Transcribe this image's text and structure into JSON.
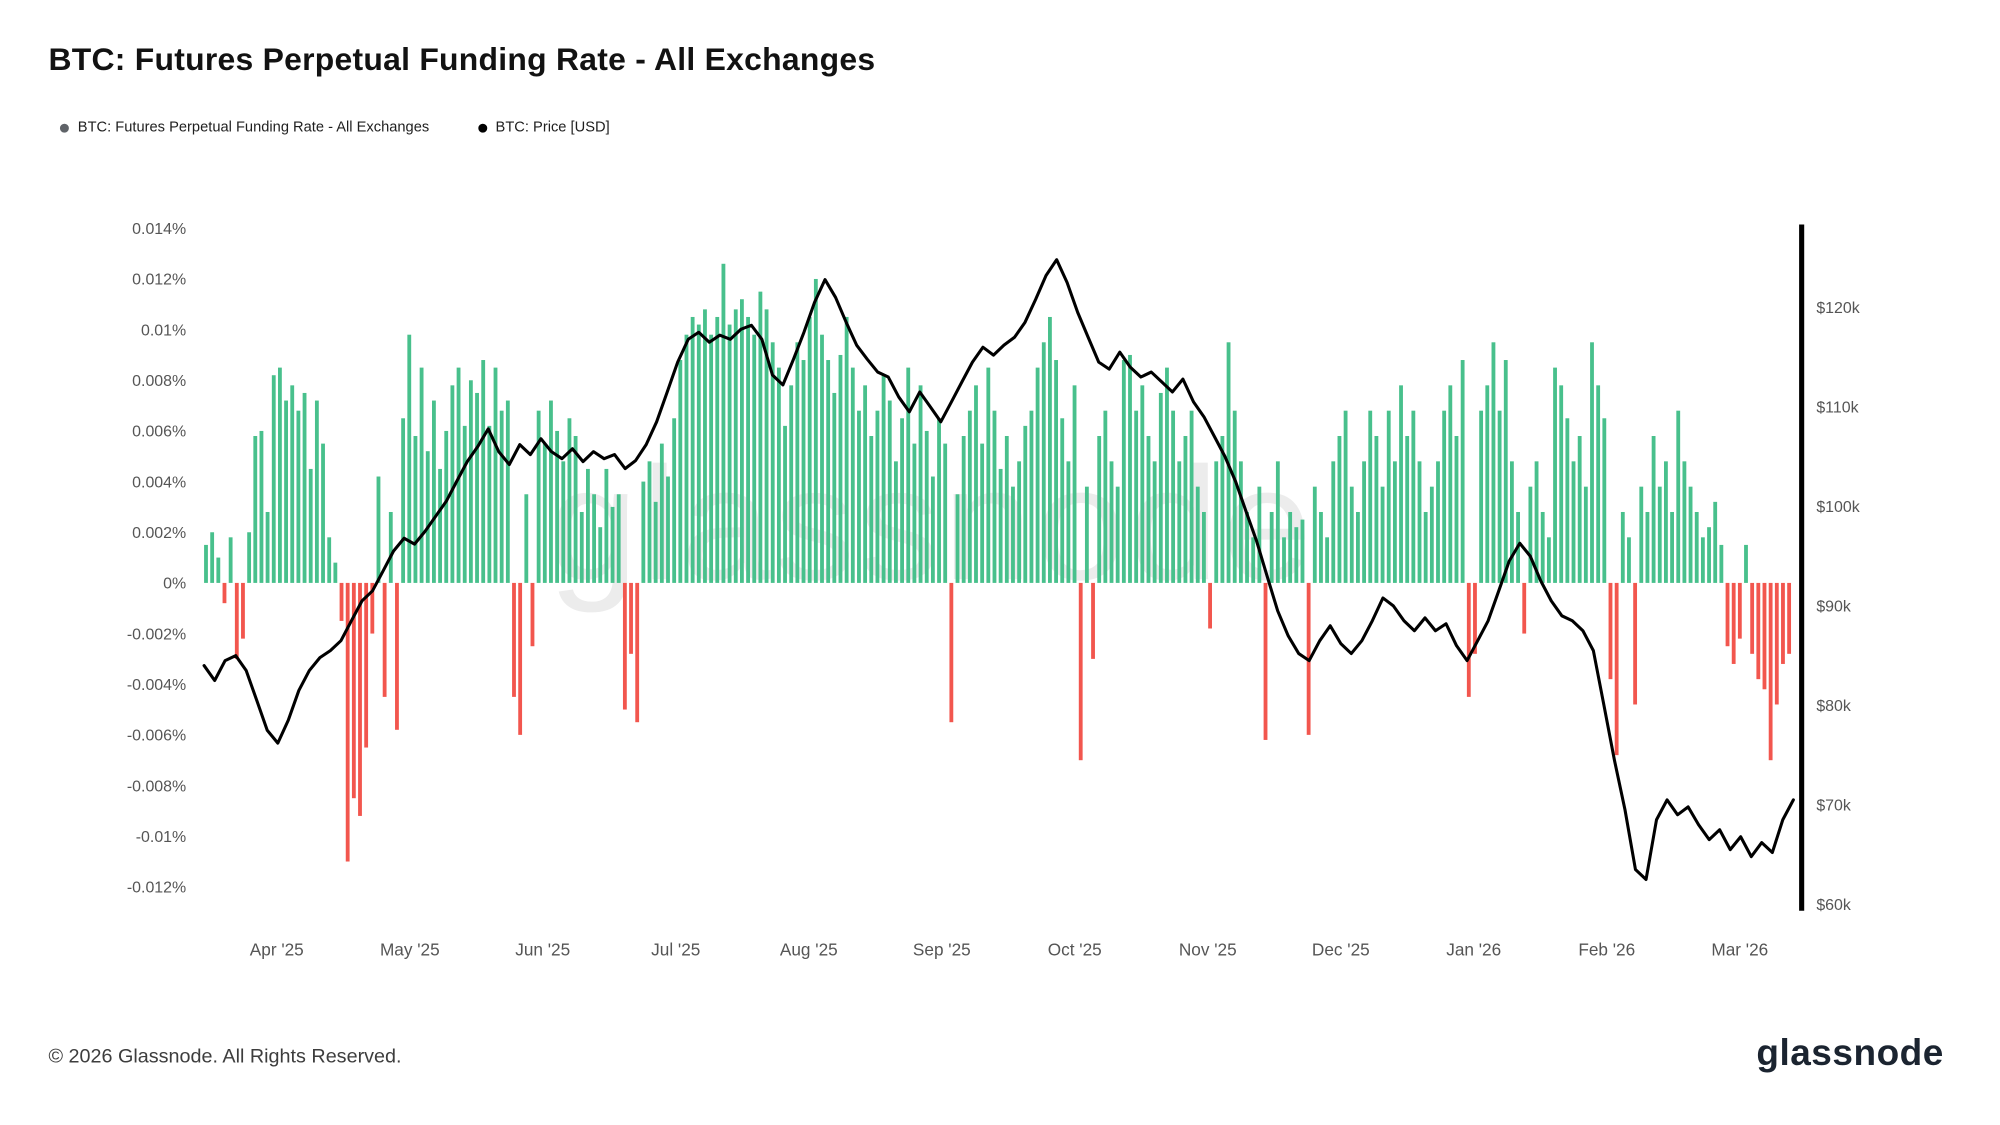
{
  "header": {
    "title": "BTC: Futures Perpetual Funding Rate - All Exchanges",
    "legend": [
      {
        "label": "BTC: Futures Perpetual Funding Rate - All Exchanges",
        "dot_color": "#5f6368"
      },
      {
        "label": "BTC: Price [USD]",
        "dot_color": "#000000"
      }
    ]
  },
  "watermark": "glassnode",
  "footer": {
    "copyright": "© 2026 Glassnode. All Rights Reserved.",
    "brand": "glassnode"
  },
  "chart_data": {
    "type": "bar",
    "subtype": "bar+line combo, dual y-axis",
    "title": "BTC: Futures Perpetual Funding Rate - All Exchanges",
    "grid": false,
    "legend_position": "top-left",
    "x_axis": {
      "labels": [
        "Apr '25",
        "May '25",
        "Jun '25",
        "Jul '25",
        "Aug '25",
        "Sep '25",
        "Oct '25",
        "Nov '25",
        "Dec '25",
        "Jan '26",
        "Feb '26",
        "Mar '26"
      ]
    },
    "left_axis": {
      "unit": "%",
      "min": -0.013,
      "max": 0.0145,
      "ticks": [
        {
          "label": "0.014%",
          "value": 0.014
        },
        {
          "label": "0.012%",
          "value": 0.012
        },
        {
          "label": "0.01%",
          "value": 0.01
        },
        {
          "label": "0.008%",
          "value": 0.008
        },
        {
          "label": "0.006%",
          "value": 0.006
        },
        {
          "label": "0.004%",
          "value": 0.004
        },
        {
          "label": "0.002%",
          "value": 0.002
        },
        {
          "label": "0%",
          "value": 0
        },
        {
          "label": "-0.002%",
          "value": -0.002
        },
        {
          "label": "-0.004%",
          "value": -0.004
        },
        {
          "label": "-0.006%",
          "value": -0.006
        },
        {
          "label": "-0.008%",
          "value": -0.008
        },
        {
          "label": "-0.01%",
          "value": -0.01
        },
        {
          "label": "-0.012%",
          "value": -0.012
        }
      ]
    },
    "right_axis": {
      "unit": "USD",
      "ticks": [
        {
          "label": "$120k",
          "value": 120
        },
        {
          "label": "$110k",
          "value": 110
        },
        {
          "label": "$100k",
          "value": 100
        },
        {
          "label": "$90k",
          "value": 90
        },
        {
          "label": "$80k",
          "value": 80
        },
        {
          "label": "$70k",
          "value": 70
        },
        {
          "label": "$60k",
          "value": 60
        }
      ]
    },
    "series": [
      {
        "name": "BTC: Futures Perpetual Funding Rate - All Exchanges",
        "type": "bar",
        "unit": "%",
        "positive_color": "#48c08c",
        "negative_color": "#f2564e",
        "values": [
          0.0015,
          0.002,
          0.001,
          -0.0008,
          0.0018,
          -0.003,
          -0.0022,
          0.002,
          0.0058,
          0.006,
          0.0028,
          0.0082,
          0.0085,
          0.0072,
          0.0078,
          0.0068,
          0.0075,
          0.0045,
          0.0072,
          0.0055,
          0.0018,
          0.0008,
          -0.0015,
          -0.011,
          -0.0085,
          -0.0092,
          -0.0065,
          -0.002,
          0.0042,
          -0.0045,
          0.0028,
          -0.0058,
          0.0065,
          0.0098,
          0.0058,
          0.0085,
          0.0052,
          0.0072,
          0.0045,
          0.006,
          0.0078,
          0.0085,
          0.0062,
          0.008,
          0.0075,
          0.0088,
          0.0062,
          0.0085,
          0.0068,
          0.0072,
          -0.0045,
          -0.006,
          0.0035,
          -0.0025,
          0.0068,
          0.0055,
          0.0072,
          0.006,
          0.0048,
          0.0065,
          0.0058,
          0.0028,
          0.0045,
          0.0035,
          0.0022,
          0.0045,
          0.003,
          0.0035,
          -0.005,
          -0.0028,
          -0.0055,
          0.004,
          0.0048,
          0.0032,
          0.0055,
          0.0042,
          0.0065,
          0.0088,
          0.0098,
          0.0105,
          0.0102,
          0.0108,
          0.0098,
          0.0105,
          0.0126,
          0.0102,
          0.0108,
          0.0112,
          0.0105,
          0.0098,
          0.0115,
          0.0108,
          0.0095,
          0.0085,
          0.0062,
          0.0078,
          0.0095,
          0.0088,
          0.0105,
          0.012,
          0.0098,
          0.0088,
          0.0075,
          0.009,
          0.0105,
          0.0085,
          0.0068,
          0.0078,
          0.0058,
          0.0068,
          0.0082,
          0.0072,
          0.0048,
          0.0065,
          0.0085,
          0.0055,
          0.0078,
          0.006,
          0.0042,
          0.0065,
          0.0055,
          -0.0055,
          0.0035,
          0.0058,
          0.0068,
          0.0078,
          0.0055,
          0.0085,
          0.0068,
          0.0045,
          0.0058,
          0.0038,
          0.0048,
          0.0062,
          0.0068,
          0.0085,
          0.0095,
          0.0105,
          0.0088,
          0.0065,
          0.0048,
          0.0078,
          -0.007,
          0.0038,
          -0.003,
          0.0058,
          0.0068,
          0.0048,
          0.0038,
          0.0088,
          0.009,
          0.0068,
          0.0078,
          0.0058,
          0.0048,
          0.0075,
          0.0085,
          0.0068,
          0.0048,
          0.0058,
          0.0068,
          0.0038,
          0.0028,
          -0.0018,
          0.0048,
          0.0058,
          0.0095,
          0.0068,
          0.0048,
          0.0028,
          0.0018,
          0.0038,
          -0.0062,
          0.0028,
          0.0048,
          0.0018,
          0.0028,
          0.0022,
          0.0025,
          -0.006,
          0.0038,
          0.0028,
          0.0018,
          0.0048,
          0.0058,
          0.0068,
          0.0038,
          0.0028,
          0.0048,
          0.0068,
          0.0058,
          0.0038,
          0.0068,
          0.0048,
          0.0078,
          0.0058,
          0.0068,
          0.0048,
          0.0028,
          0.0038,
          0.0048,
          0.0068,
          0.0078,
          0.0058,
          0.0088,
          -0.0045,
          -0.0028,
          0.0068,
          0.0078,
          0.0095,
          0.0068,
          0.0088,
          0.0048,
          0.0028,
          -0.002,
          0.0038,
          0.0048,
          0.0028,
          0.0018,
          0.0085,
          0.0078,
          0.0065,
          0.0048,
          0.0058,
          0.0038,
          0.0095,
          0.0078,
          0.0065,
          -0.0038,
          -0.0068,
          0.0028,
          0.0018,
          -0.0048,
          0.0038,
          0.0028,
          0.0058,
          0.0038,
          0.0048,
          0.0028,
          0.0068,
          0.0048,
          0.0038,
          0.0028,
          0.0018,
          0.0022,
          0.0032,
          0.0015,
          -0.0025,
          -0.0032,
          -0.0022,
          0.0015,
          -0.0028,
          -0.0038,
          -0.0042,
          -0.007,
          -0.0048,
          -0.0032,
          -0.0028
        ]
      },
      {
        "name": "BTC: Price [USD]",
        "type": "line",
        "unit": "USD (thousands)",
        "color": "#000000",
        "values": [
          84,
          82.5,
          84.5,
          85,
          83.5,
          80.5,
          77.5,
          76.2,
          78.5,
          81.5,
          83.5,
          84.8,
          85.5,
          86.5,
          88.5,
          90.5,
          91.5,
          93.5,
          95.5,
          96.8,
          96.2,
          97.5,
          99,
          100.5,
          102.5,
          104.5,
          106,
          107.8,
          105.5,
          104.2,
          106.2,
          105.2,
          106.8,
          105.5,
          104.8,
          105.8,
          104.5,
          105.5,
          104.8,
          105.2,
          103.8,
          104.6,
          106.2,
          108.5,
          111.5,
          114.5,
          116.8,
          117.5,
          116.5,
          117.2,
          116.8,
          117.8,
          118.2,
          116.8,
          113.2,
          112.2,
          114.8,
          117.5,
          120.5,
          122.8,
          121,
          118.5,
          116.2,
          114.8,
          113.5,
          113,
          111,
          109.5,
          111.5,
          110,
          108.5,
          110.5,
          112.5,
          114.5,
          116,
          115.2,
          116.2,
          117,
          118.5,
          120.8,
          123.2,
          124.8,
          122.5,
          119.5,
          117,
          114.5,
          113.8,
          115.5,
          114,
          113,
          113.5,
          112.5,
          111.5,
          112.8,
          110.5,
          109,
          107,
          105,
          102.5,
          99.5,
          96.5,
          93,
          89.5,
          87,
          85.2,
          84.5,
          86.5,
          88,
          86.2,
          85.2,
          86.5,
          88.5,
          90.8,
          90,
          88.5,
          87.5,
          88.8,
          87.5,
          88.2,
          86,
          84.5,
          86.5,
          88.5,
          91.5,
          94.5,
          96.3,
          95,
          92.5,
          90.5,
          89,
          88.5,
          87.5,
          85.5,
          80,
          74.5,
          69.5,
          63.5,
          62.5,
          68.5,
          70.5,
          69,
          69.8,
          68,
          66.5,
          67.5,
          65.5,
          66.8,
          64.8,
          66.2,
          65.2,
          68.5,
          70.5
        ]
      }
    ]
  }
}
